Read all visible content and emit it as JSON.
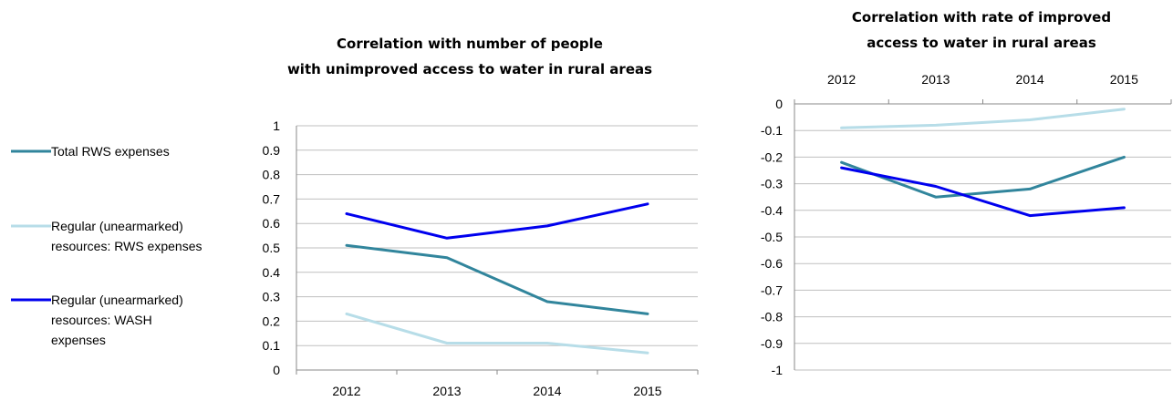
{
  "legend": [
    {
      "lines": [
        "Total RWS expenses"
      ],
      "color": "#31859c"
    },
    {
      "lines": [
        "Regular (unearmarked)",
        "resources: RWS expenses"
      ],
      "color": "#b7dde8"
    },
    {
      "lines": [
        "Regular (unearmarked)",
        "resources: WASH",
        "expenses"
      ],
      "color": "#0000ee"
    }
  ],
  "chart_data": [
    {
      "type": "line",
      "title": [
        "Correlation with number of people",
        "with unimproved access to water in rural areas"
      ],
      "categories": [
        "2012",
        "2013",
        "2014",
        "2015"
      ],
      "ylim": [
        0,
        1
      ],
      "yticks": [
        0,
        0.1,
        0.2,
        0.3,
        0.4,
        0.5,
        0.6,
        0.7,
        0.8,
        0.9,
        1
      ],
      "ytick_labels": [
        "0",
        "0.1",
        "0.2",
        "0.3",
        "0.4",
        "0.5",
        "0.6",
        "0.7",
        "0.8",
        "0.9",
        "1"
      ],
      "grid": true,
      "legend_position": "left",
      "x_axis_position": "bottom",
      "series": [
        {
          "name": "Total RWS expenses",
          "color": "#31859c",
          "values": [
            0.51,
            0.46,
            0.28,
            0.23
          ]
        },
        {
          "name": "Regular (unearmarked) resources: RWS expenses",
          "color": "#b7dde8",
          "values": [
            0.23,
            0.11,
            0.11,
            0.07
          ]
        },
        {
          "name": "Regular (unearmarked) resources: WASH expenses",
          "color": "#0000ee",
          "values": [
            0.64,
            0.54,
            0.59,
            0.68
          ]
        }
      ]
    },
    {
      "type": "line",
      "title": [
        "Correlation with rate of improved",
        "access to water in rural areas"
      ],
      "categories": [
        "2012",
        "2013",
        "2014",
        "2015"
      ],
      "ylim": [
        -1,
        0
      ],
      "yticks": [
        0,
        -0.1,
        -0.2,
        -0.3,
        -0.4,
        -0.5,
        -0.6,
        -0.7,
        -0.8,
        -0.9,
        -1
      ],
      "ytick_labels": [
        "0",
        "-0.1",
        "-0.2",
        "-0.3",
        "-0.4",
        "-0.5",
        "-0.6",
        "-0.7",
        "-0.8",
        "-0.9",
        "-1"
      ],
      "grid": true,
      "x_axis_position": "top",
      "series": [
        {
          "name": "Total RWS expenses",
          "color": "#31859c",
          "values": [
            -0.22,
            -0.35,
            -0.32,
            -0.2
          ]
        },
        {
          "name": "Regular (unearmarked) resources: RWS expenses",
          "color": "#b7dde8",
          "values": [
            -0.09,
            -0.08,
            -0.06,
            -0.02
          ]
        },
        {
          "name": "Regular (unearmarked) resources: WASH expenses",
          "color": "#0000ee",
          "values": [
            -0.24,
            -0.31,
            -0.42,
            -0.39
          ]
        }
      ]
    }
  ]
}
